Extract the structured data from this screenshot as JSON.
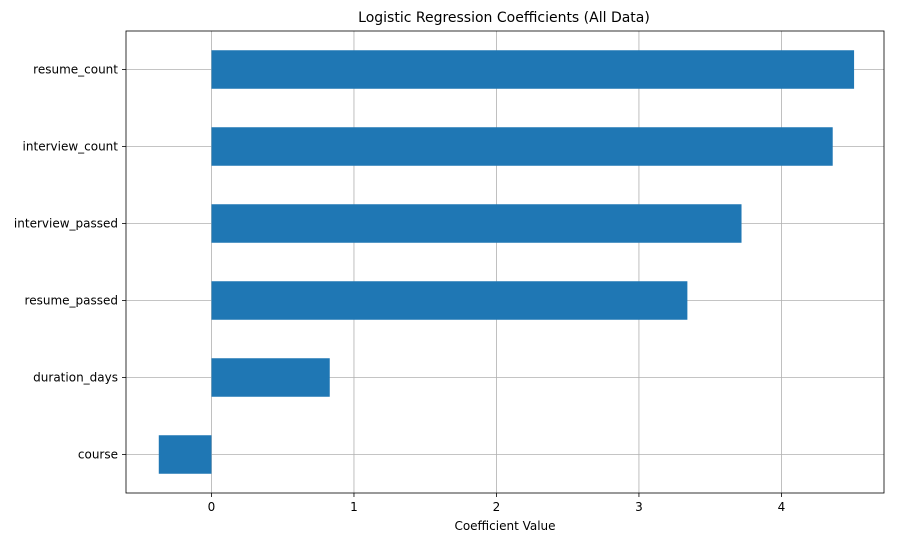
{
  "chart_data": {
    "type": "bar",
    "orientation": "horizontal",
    "title": "Logistic Regression Coefficients (All Data)",
    "xlabel": "Coefficient Value",
    "ylabel": "",
    "categories": [
      "course",
      "duration_days",
      "resume_passed",
      "interview_passed",
      "interview_count",
      "resume_count"
    ],
    "values": [
      -0.37,
      0.83,
      3.34,
      3.72,
      4.36,
      4.51
    ],
    "xlim": [
      -0.6,
      4.72
    ],
    "xticks": [
      0,
      1,
      2,
      3,
      4
    ],
    "grid": true,
    "bar_color": "#1f77b4"
  }
}
